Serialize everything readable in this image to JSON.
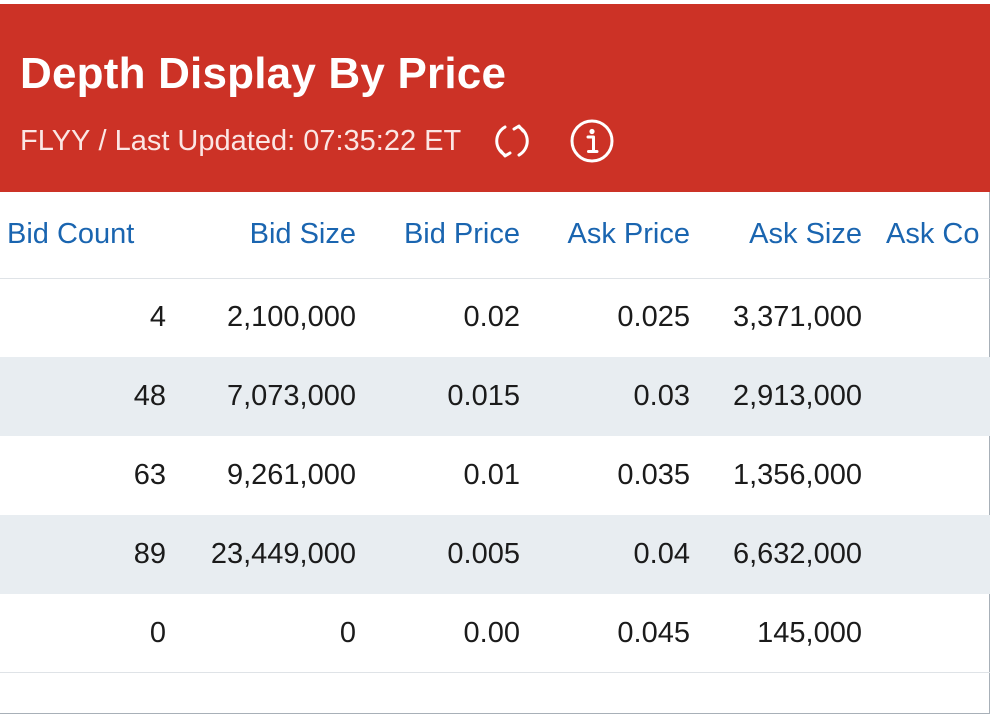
{
  "header": {
    "title": "Depth Display By Price",
    "symbol": "FLYY",
    "separator": " / ",
    "last_updated_label": "Last Updated: ",
    "last_updated_time": "07:35:22 ET",
    "refresh_icon": "refresh-icon",
    "info_icon": "info-icon",
    "background_color": "#cc3226"
  },
  "table": {
    "columns": [
      "Bid Count",
      "Bid Size",
      "Bid Price",
      "Ask Price",
      "Ask Size",
      "Ask Co"
    ],
    "rows": [
      {
        "bid_count": "4",
        "bid_size": "2,100,000",
        "bid_price": "0.02",
        "ask_price": "0.025",
        "ask_size": "3,371,000",
        "ask_count": ""
      },
      {
        "bid_count": "48",
        "bid_size": "7,073,000",
        "bid_price": "0.015",
        "ask_price": "0.03",
        "ask_size": "2,913,000",
        "ask_count": ""
      },
      {
        "bid_count": "63",
        "bid_size": "9,261,000",
        "bid_price": "0.01",
        "ask_price": "0.035",
        "ask_size": "1,356,000",
        "ask_count": ""
      },
      {
        "bid_count": "89",
        "bid_size": "23,449,000",
        "bid_price": "0.005",
        "ask_price": "0.04",
        "ask_size": "6,632,000",
        "ask_count": ""
      },
      {
        "bid_count": "0",
        "bid_size": "0",
        "bid_price": "0.00",
        "ask_price": "0.045",
        "ask_size": "145,000",
        "ask_count": ""
      }
    ],
    "header_color": "#1a65b0",
    "alt_row_color": "#e8edf1"
  }
}
